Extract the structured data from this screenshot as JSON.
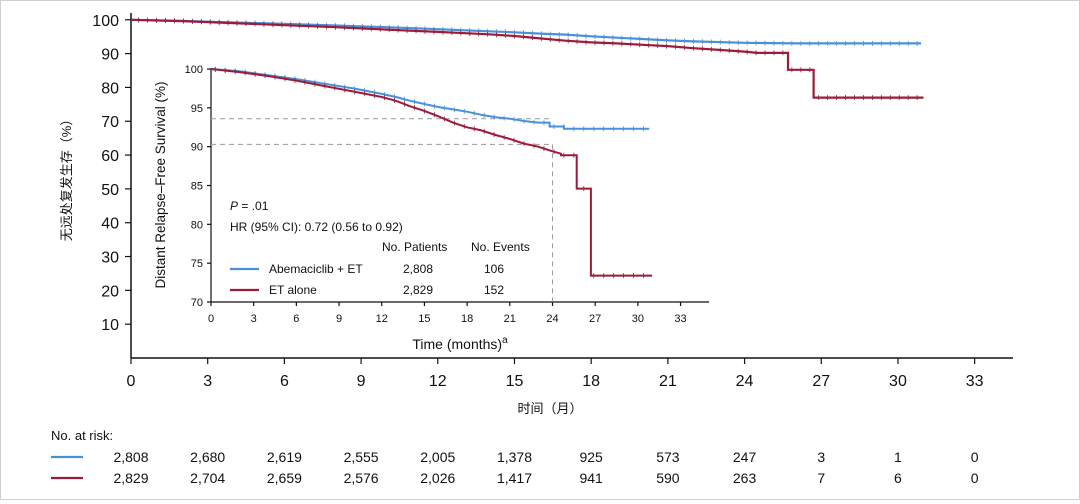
{
  "colors": {
    "abemaciclib": "#4a90d9",
    "et_alone": "#9b1b3a",
    "axis": "#111111",
    "guide": "#9a9a9a"
  },
  "chart_data": [
    {
      "type": "line",
      "panel": "main",
      "xlabel": "时间（月）",
      "ylabel": "无远处复发生存（%）",
      "x_ticks": [
        0,
        3,
        6,
        9,
        12,
        15,
        18,
        21,
        24,
        27,
        30,
        33
      ],
      "y_ticks": [
        10,
        20,
        30,
        40,
        50,
        60,
        70,
        80,
        90,
        100
      ],
      "xlim": [
        0,
        34.5
      ],
      "ylim": [
        0,
        102
      ],
      "series": [
        {
          "name": "Abemaciclib + ET",
          "points": [
            [
              0,
              100
            ],
            [
              2,
              99.7
            ],
            [
              4,
              99.2
            ],
            [
              6,
              98.8
            ],
            [
              8,
              98.3
            ],
            [
              10,
              97.8
            ],
            [
              12,
              97.2
            ],
            [
              14,
              96.6
            ],
            [
              15,
              96.3
            ],
            [
              16,
              95.9
            ],
            [
              17,
              95.6
            ],
            [
              18,
              95.1
            ],
            [
              19,
              94.7
            ],
            [
              20,
              94.3
            ],
            [
              21,
              93.9
            ],
            [
              22,
              93.6
            ],
            [
              24,
              93.2
            ],
            [
              26,
              93.0
            ],
            [
              30.9,
              93.0
            ]
          ]
        },
        {
          "name": "ET alone",
          "points": [
            [
              0,
              100
            ],
            [
              2,
              99.6
            ],
            [
              4,
              99.0
            ],
            [
              6,
              98.4
            ],
            [
              8,
              97.8
            ],
            [
              10,
              97.1
            ],
            [
              12,
              96.4
            ],
            [
              14,
              95.7
            ],
            [
              15,
              95.2
            ],
            [
              16,
              94.5
            ],
            [
              17,
              93.8
            ],
            [
              18,
              93.3
            ],
            [
              19,
              93.0
            ],
            [
              20,
              92.6
            ],
            [
              21,
              92.2
            ],
            [
              22,
              91.6
            ],
            [
              23,
              91.1
            ],
            [
              24,
              90.6
            ],
            [
              24.5,
              90.2
            ],
            [
              25.7,
              90.2
            ],
            [
              25.7,
              85.2
            ],
            [
              26.7,
              85.2
            ],
            [
              26.7,
              77.0
            ],
            [
              31,
              77.0
            ]
          ]
        }
      ]
    },
    {
      "type": "line",
      "panel": "inset",
      "xlabel": "Time (months)",
      "xlabel_sup": "a",
      "ylabel": "Distant Relapse–Free Survival (%)",
      "x_ticks": [
        0,
        3,
        6,
        9,
        12,
        15,
        18,
        21,
        24,
        27,
        30,
        33
      ],
      "y_ticks": [
        70,
        75,
        80,
        85,
        90,
        95,
        100
      ],
      "xlim": [
        0,
        35
      ],
      "ylim": [
        70,
        100
      ],
      "reference_lines": [
        {
          "x": 24,
          "y": 93.6
        },
        {
          "x": 24,
          "y": 90.3
        }
      ],
      "series": [
        {
          "name": "Abemaciclib + ET",
          "points": [
            [
              0,
              100
            ],
            [
              2,
              99.7
            ],
            [
              4,
              99.2
            ],
            [
              6,
              98.7
            ],
            [
              8,
              98.1
            ],
            [
              10,
              97.5
            ],
            [
              12,
              96.8
            ],
            [
              13,
              96.4
            ],
            [
              14,
              95.9
            ],
            [
              15,
              95.5
            ],
            [
              16,
              95.1
            ],
            [
              17,
              94.8
            ],
            [
              18,
              94.5
            ],
            [
              19,
              94.1
            ],
            [
              20,
              93.8
            ],
            [
              21,
              93.6
            ],
            [
              22,
              93.3
            ],
            [
              23,
              93.1
            ],
            [
              23.8,
              93.1
            ],
            [
              23.8,
              92.6
            ],
            [
              24.8,
              92.6
            ],
            [
              24.8,
              92.3
            ],
            [
              30.8,
              92.3
            ]
          ]
        },
        {
          "name": "ET alone",
          "points": [
            [
              0,
              100
            ],
            [
              2,
              99.6
            ],
            [
              4,
              99.1
            ],
            [
              6,
              98.5
            ],
            [
              8,
              97.8
            ],
            [
              10,
              97.1
            ],
            [
              12,
              96.4
            ],
            [
              13,
              95.9
            ],
            [
              14,
              95.2
            ],
            [
              15,
              94.6
            ],
            [
              16,
              93.9
            ],
            [
              17,
              93.1
            ],
            [
              18,
              92.5
            ],
            [
              19,
              92.1
            ],
            [
              20,
              91.5
            ],
            [
              21,
              91.0
            ],
            [
              22,
              90.4
            ],
            [
              23,
              90.0
            ],
            [
              24,
              89.4
            ],
            [
              24.6,
              89.1
            ],
            [
              24.6,
              88.9
            ],
            [
              25.7,
              88.9
            ],
            [
              25.7,
              84.6
            ],
            [
              26.7,
              84.6
            ],
            [
              26.7,
              73.4
            ],
            [
              31,
              73.4
            ]
          ]
        }
      ]
    }
  ],
  "inset": {
    "p_label": "P",
    "p_value": " = .01",
    "hr": "HR (95% CI): 0.72 (0.56 to 0.92)",
    "table_headers": [
      "No. Patients",
      "No. Events"
    ],
    "legend": [
      {
        "label": "Abemaciclib + ET",
        "patients": "2,808",
        "events": "106"
      },
      {
        "label": "ET alone",
        "patients": "2,829",
        "events": "152"
      }
    ]
  },
  "at_risk": {
    "title": "No. at risk:",
    "rows": [
      {
        "series": "Abemaciclib + ET",
        "values": [
          "2,808",
          "2,680",
          "2,619",
          "2,555",
          "2,005",
          "1,378",
          "925",
          "573",
          "247",
          "3",
          "1",
          "0"
        ]
      },
      {
        "series": "ET alone",
        "values": [
          "2,829",
          "2,704",
          "2,659",
          "2,576",
          "2,026",
          "1,417",
          "941",
          "590",
          "263",
          "7",
          "6",
          "0"
        ]
      }
    ]
  }
}
